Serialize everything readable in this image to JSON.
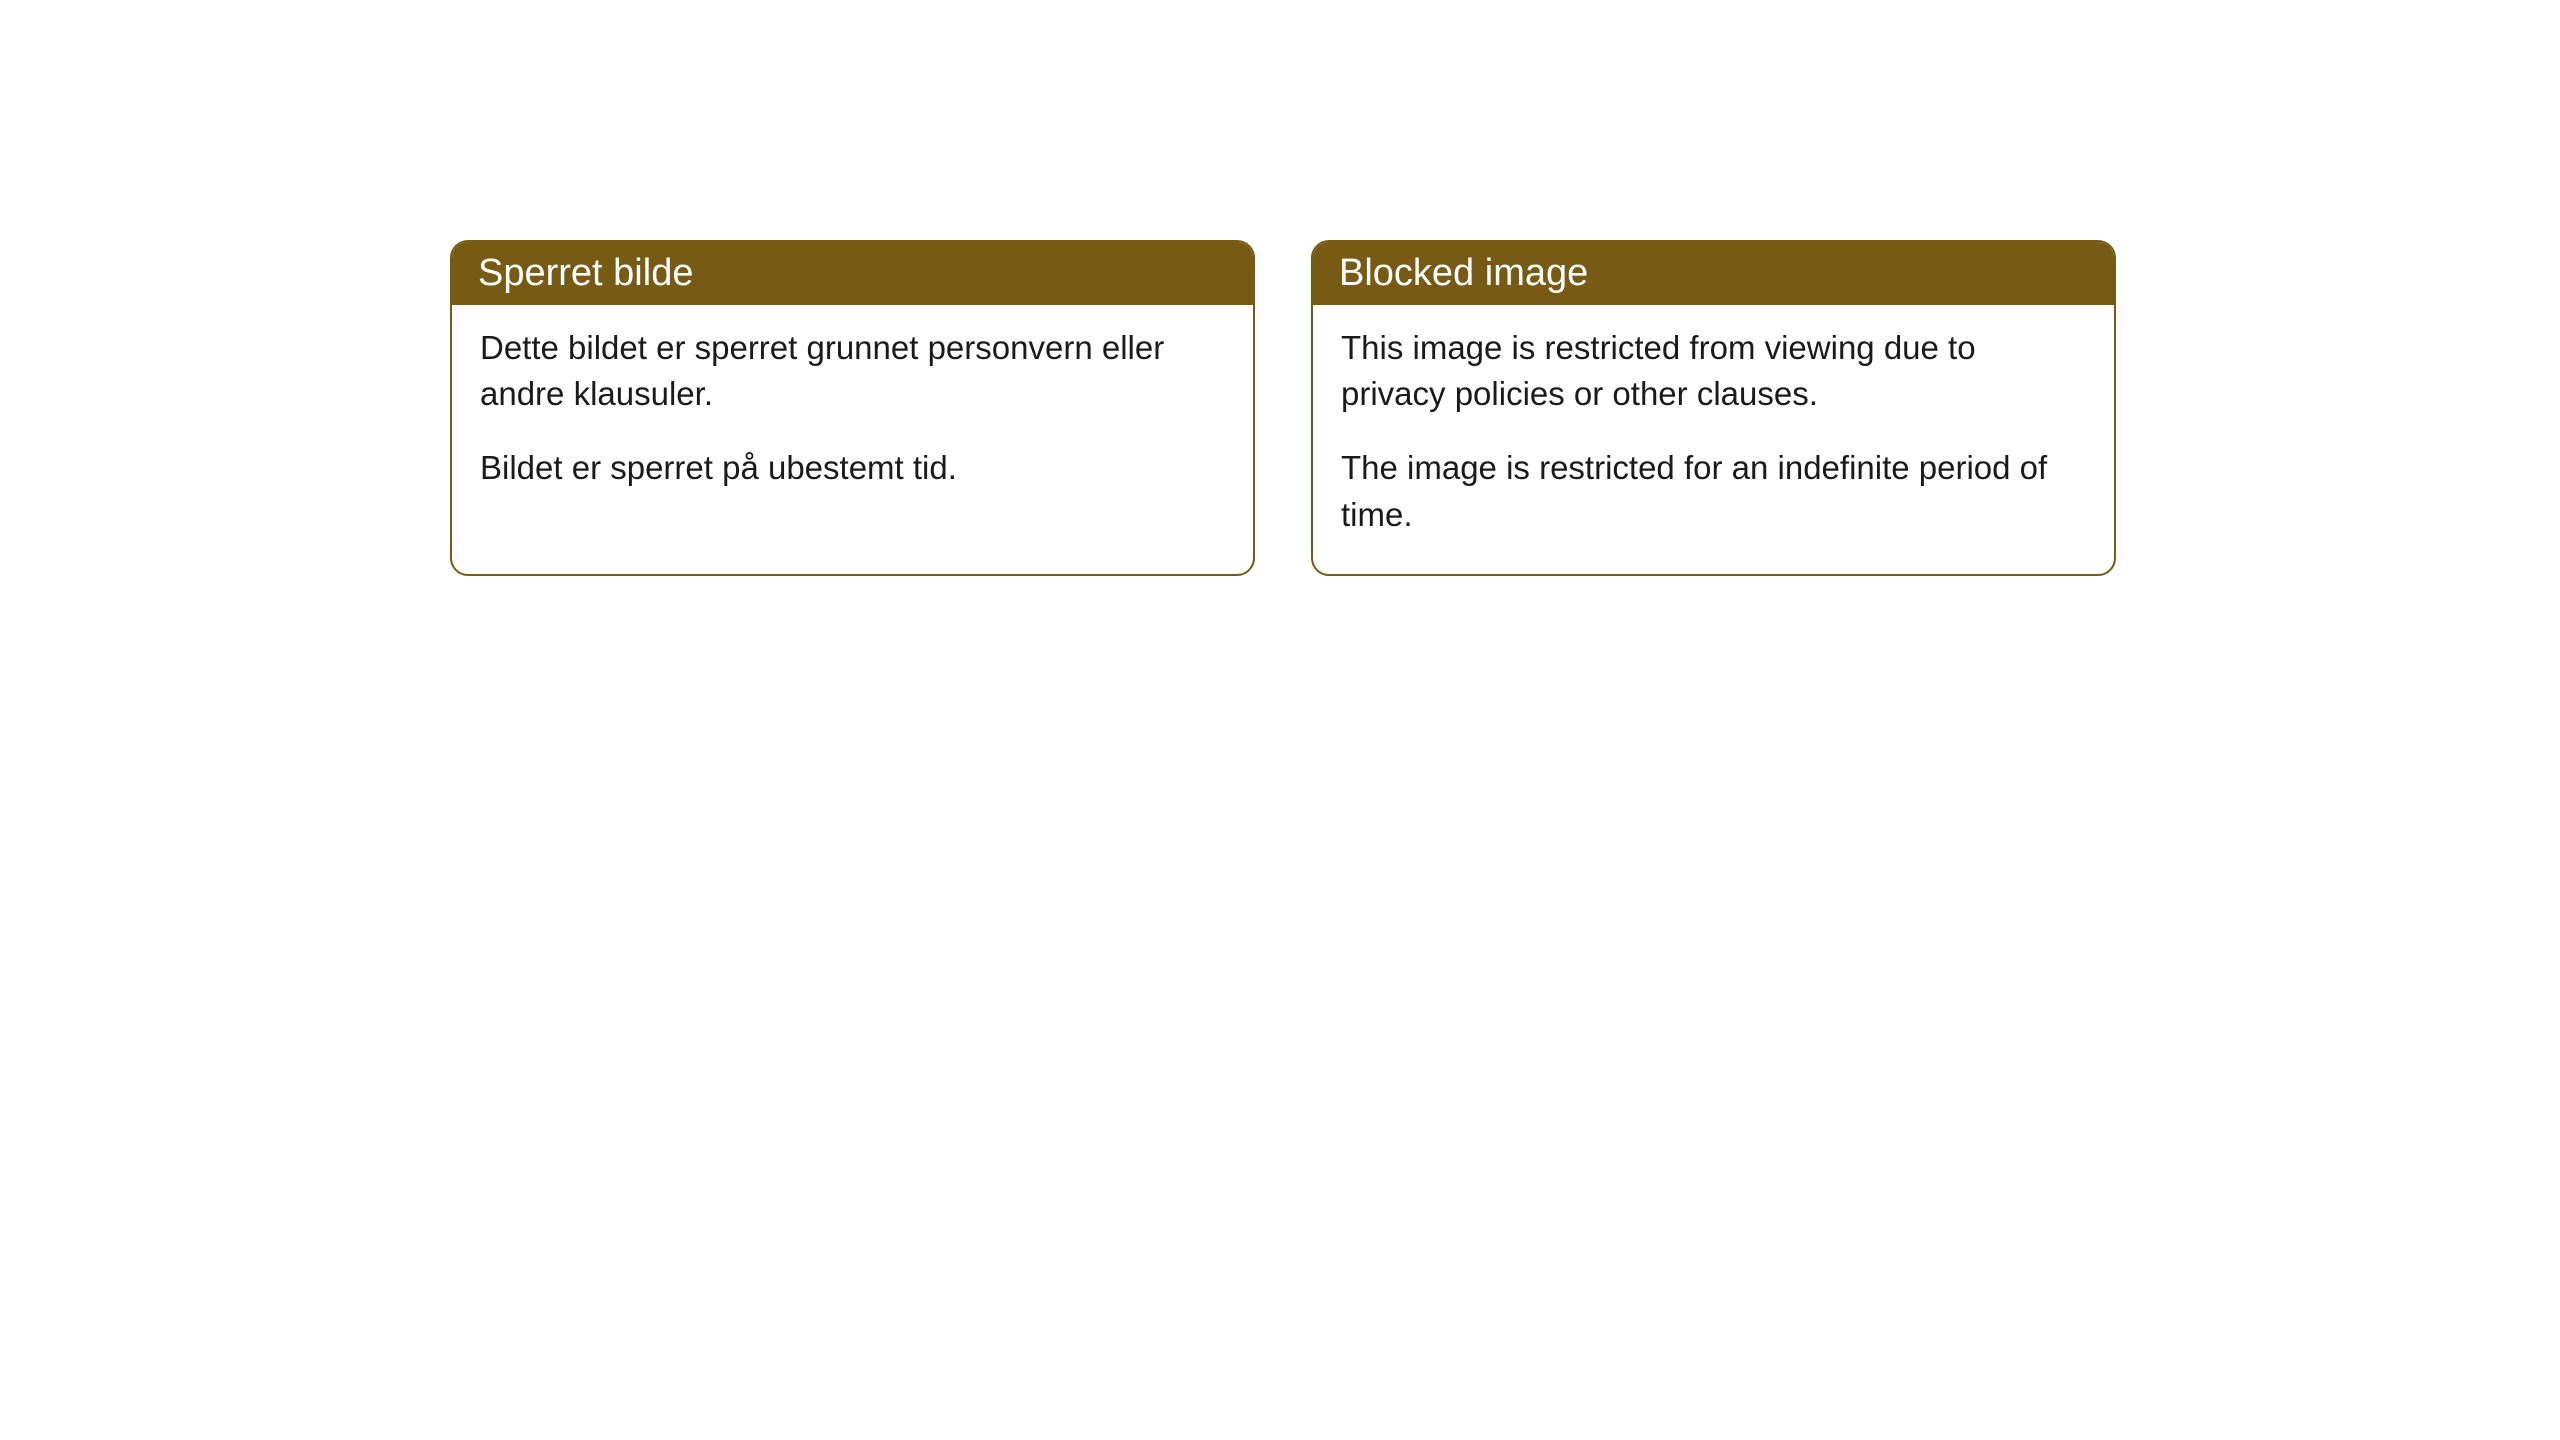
{
  "cards": [
    {
      "title": "Sperret bilde",
      "paragraph1": "Dette bildet er sperret grunnet personvern eller andre klausuler.",
      "paragraph2": "Bildet er sperret på ubestemt tid."
    },
    {
      "title": "Blocked image",
      "paragraph1": "This image is restricted from viewing due to privacy policies or other clauses.",
      "paragraph2": "The image is restricted for an indefinite period of time."
    }
  ],
  "styling": {
    "header_background": "#775a13",
    "header_text_color": "#ffffff",
    "border_color": "#775a13",
    "body_text_color": "#1a1a1a",
    "background_color": "#ffffff",
    "border_radius": 18,
    "header_fontsize": 38,
    "body_fontsize": 33
  }
}
